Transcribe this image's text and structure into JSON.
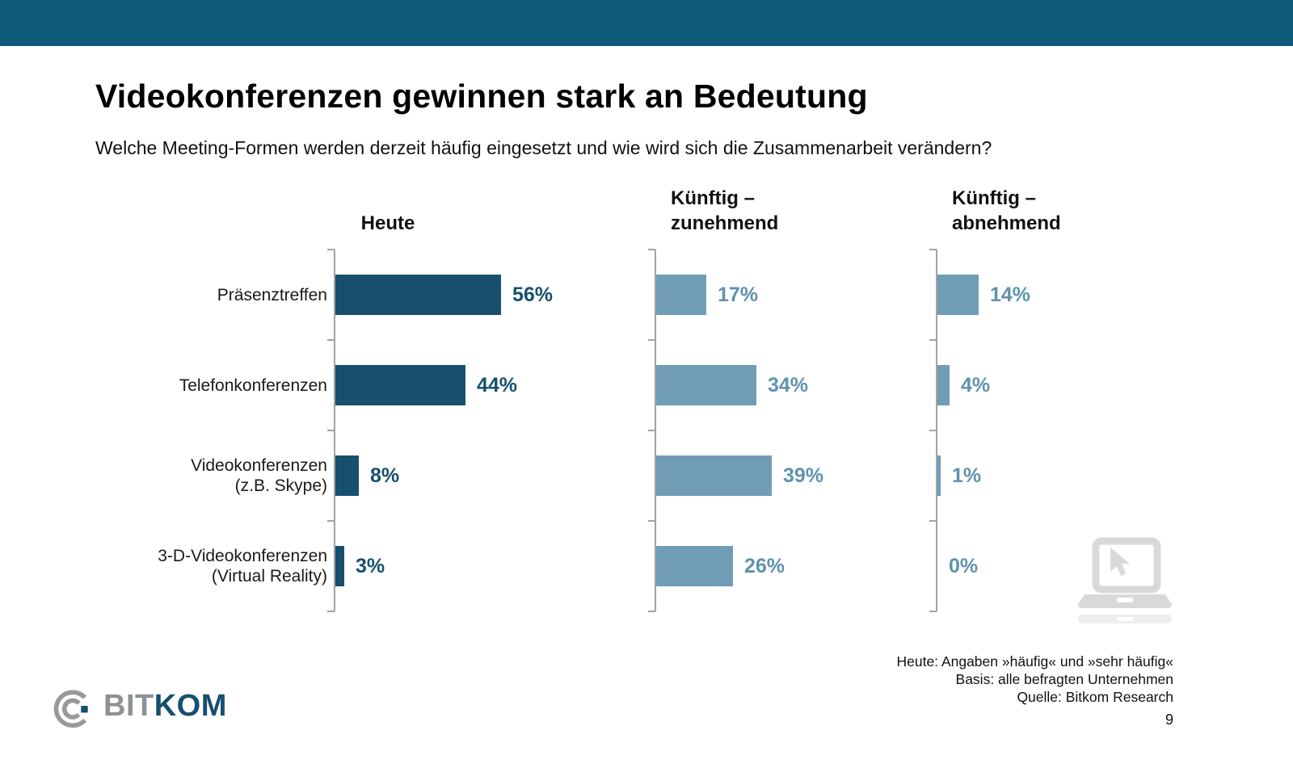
{
  "slide": {
    "title": "Videokonferenzen gewinnen stark an Bedeutung",
    "subtitle": "Welche Meeting-Formen werden derzeit häufig eingesetzt und wie wird sich die Zusammenarbeit verändern?",
    "footnotes": [
      "Heute: Angaben »häufig« und »sehr häufig«",
      "Basis: alle befragten Unternehmen",
      "Quelle: Bitkom Research"
    ],
    "page_number": "9"
  },
  "logo": {
    "prefix": "BIT",
    "suffix": "KOM"
  },
  "icons": {
    "logo_mark": "bitkom-arc-mark-icon",
    "watermark": "laptop-with-cursor-icon"
  },
  "colors": {
    "accent_bar": "#0d5a78",
    "bar_dark": "#174f6e",
    "bar_light": "#6f9db5",
    "label_dark": "#174f6e",
    "label_light": "#5e92ad",
    "axis": "#a3a3a3",
    "watermark": "#d8d9da"
  },
  "chart_data": {
    "type": "bar",
    "orientation": "horizontal",
    "title": "Videokonferenzen gewinnen stark an Bedeutung",
    "question": "Welche Meeting-Formen werden derzeit häufig eingesetzt und wie wird sich die Zusammenarbeit verändern?",
    "categories": [
      "Präsenztreffen",
      "Telefonkonferenzen",
      "Videokonferenzen\n(z.B. Skype)",
      "3-D-Videokonferenzen\n(Virtual Reality)"
    ],
    "series": [
      {
        "name": "Heute",
        "header": "Heute",
        "palette": "dark",
        "values": [
          56,
          44,
          8,
          3
        ]
      },
      {
        "name": "Künftig – zunehmend",
        "header": "Künftig –\nzunehmend",
        "palette": "light",
        "values": [
          17,
          34,
          39,
          26
        ]
      },
      {
        "name": "Künftig – abnehmend",
        "header": "Künftig –\nabnehmend",
        "palette": "light",
        "values": [
          14,
          4,
          1,
          0
        ]
      }
    ],
    "value_suffix": "%",
    "xlim": [
      0,
      60
    ],
    "grid": false,
    "legend": "none"
  }
}
